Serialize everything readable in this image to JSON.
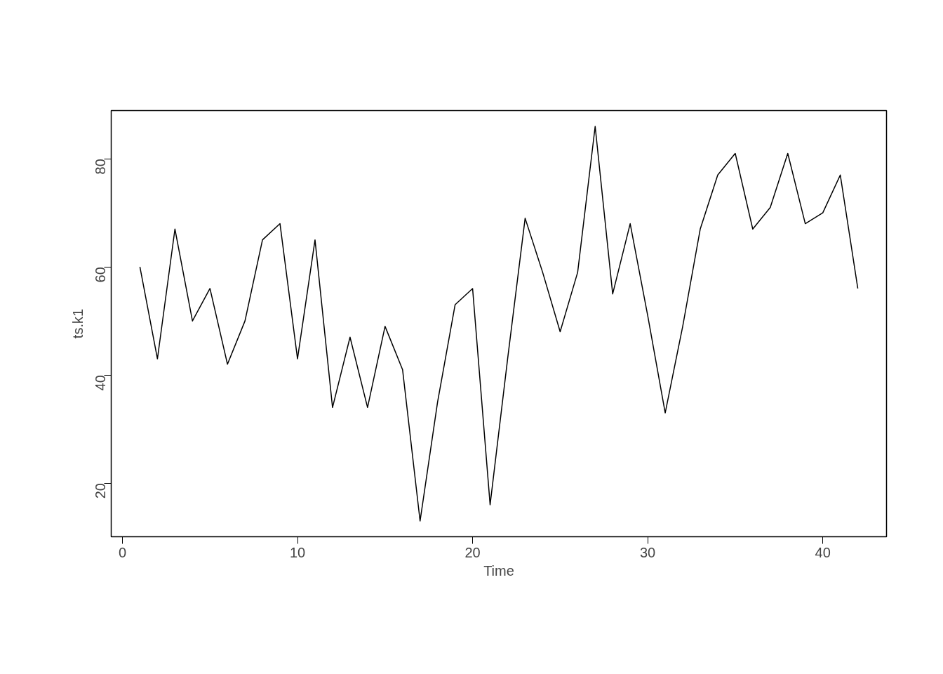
{
  "chart_data": {
    "type": "line",
    "xlabel": "Time",
    "ylabel": "ts.k1",
    "x": [
      1,
      2,
      3,
      4,
      5,
      6,
      7,
      8,
      9,
      10,
      11,
      12,
      13,
      14,
      15,
      16,
      17,
      18,
      19,
      20,
      21,
      22,
      23,
      24,
      25,
      26,
      27,
      28,
      29,
      30,
      31,
      32,
      33,
      34,
      35,
      36,
      37,
      38,
      39,
      40,
      41,
      42
    ],
    "series": [
      {
        "color": "#000000",
        "values": [
          60,
          43,
          67,
          50,
          56,
          42,
          50,
          65,
          68,
          43,
          65,
          34,
          47,
          34,
          49,
          41,
          13,
          35,
          53,
          56,
          16,
          43,
          69,
          59,
          48,
          59,
          86,
          55,
          68,
          51,
          33,
          49,
          67,
          77,
          81,
          67,
          71,
          81,
          68,
          70,
          77,
          56
        ]
      }
    ],
    "xlim": [
      -0.64,
      43.64
    ],
    "ylim": [
      10.08,
      88.92
    ],
    "xticks": [
      0,
      10,
      20,
      30,
      40
    ],
    "yticks": [
      20,
      40,
      60,
      80
    ],
    "grid": false,
    "marker": "none",
    "line_style": "solid"
  }
}
